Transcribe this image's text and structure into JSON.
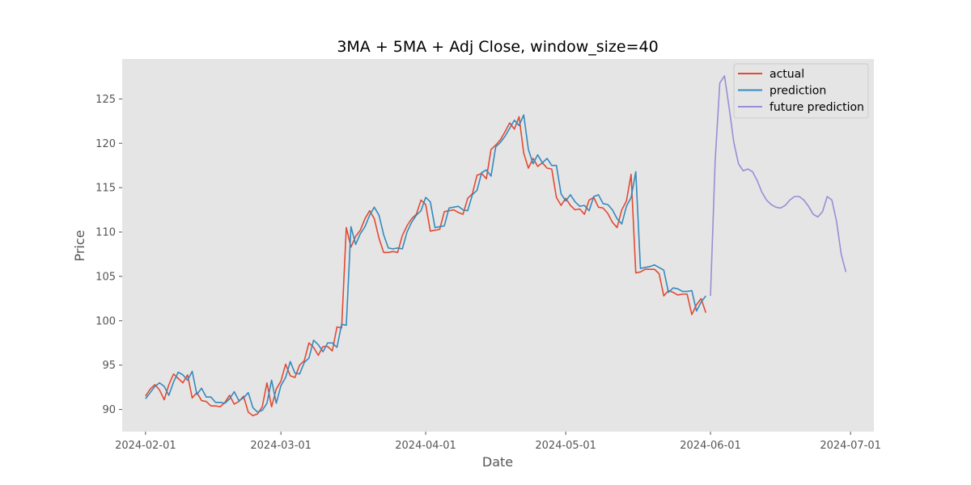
{
  "chart_data": {
    "type": "line",
    "title": "3MA + 5MA + Adj Close, window_size=40",
    "xlabel": "Date",
    "ylabel": "Price",
    "x_ticks": [
      "2024-02-01",
      "2024-03-01",
      "2024-04-01",
      "2024-05-01",
      "2024-06-01",
      "2024-07-01"
    ],
    "y_ticks": [
      90,
      95,
      100,
      105,
      110,
      115,
      120,
      125
    ],
    "xlim": [
      "2024-01-27",
      "2024-07-06"
    ],
    "ylim": [
      87.5,
      129.5
    ],
    "grid": false,
    "legend_position": "top-right",
    "colors": {
      "actual": "#e24a33",
      "prediction": "#348abd",
      "future prediction": "#988ed5",
      "plot_background": "#e5e5e5"
    },
    "series": [
      {
        "name": "actual",
        "points": [
          [
            "2024-02-01",
            91.5
          ],
          [
            "2024-02-02",
            92.3
          ],
          [
            "2024-02-03",
            92.8
          ],
          [
            "2024-02-04",
            92.2
          ],
          [
            "2024-02-05",
            91.1
          ],
          [
            "2024-02-06",
            92.8
          ],
          [
            "2024-02-07",
            94.0
          ],
          [
            "2024-02-08",
            93.5
          ],
          [
            "2024-02-09",
            93.0
          ],
          [
            "2024-02-10",
            93.9
          ],
          [
            "2024-02-11",
            91.3
          ],
          [
            "2024-02-12",
            91.9
          ],
          [
            "2024-02-13",
            91.0
          ],
          [
            "2024-02-14",
            90.9
          ],
          [
            "2024-02-15",
            90.4
          ],
          [
            "2024-02-16",
            90.4
          ],
          [
            "2024-02-17",
            90.3
          ],
          [
            "2024-02-18",
            90.8
          ],
          [
            "2024-02-19",
            91.6
          ],
          [
            "2024-02-20",
            90.6
          ],
          [
            "2024-02-21",
            90.9
          ],
          [
            "2024-02-22",
            91.5
          ],
          [
            "2024-02-23",
            89.7
          ],
          [
            "2024-02-24",
            89.3
          ],
          [
            "2024-02-25",
            89.5
          ],
          [
            "2024-02-26",
            90.3
          ],
          [
            "2024-02-27",
            93.0
          ],
          [
            "2024-02-28",
            90.3
          ],
          [
            "2024-02-29",
            92.3
          ],
          [
            "2024-03-01",
            93.2
          ],
          [
            "2024-03-02",
            95.1
          ],
          [
            "2024-03-03",
            93.8
          ],
          [
            "2024-03-04",
            93.6
          ],
          [
            "2024-03-05",
            95.0
          ],
          [
            "2024-03-06",
            95.5
          ],
          [
            "2024-03-07",
            97.5
          ],
          [
            "2024-03-08",
            97.0
          ],
          [
            "2024-03-09",
            96.1
          ],
          [
            "2024-03-10",
            97.1
          ],
          [
            "2024-03-11",
            97.1
          ],
          [
            "2024-03-12",
            96.6
          ],
          [
            "2024-03-13",
            99.3
          ],
          [
            "2024-03-14",
            99.2
          ],
          [
            "2024-03-15",
            110.5
          ],
          [
            "2024-03-16",
            108.3
          ],
          [
            "2024-03-17",
            109.5
          ],
          [
            "2024-03-18",
            110.2
          ],
          [
            "2024-03-19",
            111.5
          ],
          [
            "2024-03-20",
            112.4
          ],
          [
            "2024-03-21",
            111.5
          ],
          [
            "2024-03-22",
            109.3
          ],
          [
            "2024-03-23",
            107.7
          ],
          [
            "2024-03-24",
            107.7
          ],
          [
            "2024-03-25",
            107.8
          ],
          [
            "2024-03-26",
            107.7
          ],
          [
            "2024-03-27",
            109.6
          ],
          [
            "2024-03-28",
            110.7
          ],
          [
            "2024-03-29",
            111.5
          ],
          [
            "2024-03-30",
            112.0
          ],
          [
            "2024-03-31",
            113.6
          ],
          [
            "2024-04-01",
            113.1
          ],
          [
            "2024-04-02",
            110.1
          ],
          [
            "2024-04-03",
            110.2
          ],
          [
            "2024-04-04",
            110.3
          ],
          [
            "2024-04-05",
            112.3
          ],
          [
            "2024-04-06",
            112.4
          ],
          [
            "2024-04-07",
            112.5
          ],
          [
            "2024-04-08",
            112.2
          ],
          [
            "2024-04-09",
            112.0
          ],
          [
            "2024-04-10",
            113.8
          ],
          [
            "2024-04-11",
            114.3
          ],
          [
            "2024-04-12",
            116.4
          ],
          [
            "2024-04-13",
            116.6
          ],
          [
            "2024-04-14",
            116.0
          ],
          [
            "2024-04-15",
            119.3
          ],
          [
            "2024-04-16",
            119.8
          ],
          [
            "2024-04-17",
            120.4
          ],
          [
            "2024-04-18",
            121.3
          ],
          [
            "2024-04-19",
            122.3
          ],
          [
            "2024-04-20",
            121.6
          ],
          [
            "2024-04-21",
            123.0
          ],
          [
            "2024-04-22",
            118.9
          ],
          [
            "2024-04-23",
            117.2
          ],
          [
            "2024-04-24",
            118.3
          ],
          [
            "2024-04-25",
            117.4
          ],
          [
            "2024-04-26",
            117.8
          ],
          [
            "2024-04-27",
            117.2
          ],
          [
            "2024-04-28",
            117.1
          ],
          [
            "2024-04-29",
            113.9
          ],
          [
            "2024-04-30",
            113.0
          ],
          [
            "2024-05-01",
            113.8
          ],
          [
            "2024-05-02",
            113.0
          ],
          [
            "2024-05-03",
            112.5
          ],
          [
            "2024-05-04",
            112.6
          ],
          [
            "2024-05-05",
            112.0
          ],
          [
            "2024-05-06",
            113.6
          ],
          [
            "2024-05-07",
            113.9
          ],
          [
            "2024-05-08",
            112.8
          ],
          [
            "2024-05-09",
            112.7
          ],
          [
            "2024-05-10",
            112.1
          ],
          [
            "2024-05-11",
            111.1
          ],
          [
            "2024-05-12",
            110.5
          ],
          [
            "2024-05-13",
            112.5
          ],
          [
            "2024-05-14",
            113.5
          ],
          [
            "2024-05-15",
            116.5
          ],
          [
            "2024-05-16",
            105.4
          ],
          [
            "2024-05-17",
            105.5
          ],
          [
            "2024-05-18",
            105.8
          ],
          [
            "2024-05-19",
            105.8
          ],
          [
            "2024-05-20",
            105.8
          ],
          [
            "2024-05-21",
            105.3
          ],
          [
            "2024-05-22",
            102.8
          ],
          [
            "2024-05-23",
            103.4
          ],
          [
            "2024-05-24",
            103.2
          ],
          [
            "2024-05-25",
            102.9
          ],
          [
            "2024-05-26",
            103.0
          ],
          [
            "2024-05-27",
            103.0
          ],
          [
            "2024-05-28",
            100.7
          ],
          [
            "2024-05-29",
            101.8
          ],
          [
            "2024-05-30",
            102.5
          ],
          [
            "2024-05-31",
            100.9
          ]
        ]
      },
      {
        "name": "prediction",
        "points": [
          [
            "2024-02-01",
            91.2
          ],
          [
            "2024-02-02",
            91.9
          ],
          [
            "2024-02-03",
            92.6
          ],
          [
            "2024-02-04",
            93.0
          ],
          [
            "2024-02-05",
            92.6
          ],
          [
            "2024-02-06",
            91.6
          ],
          [
            "2024-02-07",
            93.1
          ],
          [
            "2024-02-08",
            94.2
          ],
          [
            "2024-02-09",
            93.9
          ],
          [
            "2024-02-10",
            93.3
          ],
          [
            "2024-02-11",
            94.3
          ],
          [
            "2024-02-12",
            91.7
          ],
          [
            "2024-02-13",
            92.4
          ],
          [
            "2024-02-14",
            91.4
          ],
          [
            "2024-02-15",
            91.4
          ],
          [
            "2024-02-16",
            90.8
          ],
          [
            "2024-02-17",
            90.8
          ],
          [
            "2024-02-18",
            90.7
          ],
          [
            "2024-02-19",
            91.2
          ],
          [
            "2024-02-20",
            92.0
          ],
          [
            "2024-02-21",
            91.0
          ],
          [
            "2024-02-22",
            91.3
          ],
          [
            "2024-02-23",
            91.9
          ],
          [
            "2024-02-24",
            90.2
          ],
          [
            "2024-02-25",
            89.7
          ],
          [
            "2024-02-26",
            89.9
          ],
          [
            "2024-02-27",
            90.7
          ],
          [
            "2024-02-28",
            93.3
          ],
          [
            "2024-02-29",
            90.7
          ],
          [
            "2024-03-01",
            92.7
          ],
          [
            "2024-03-02",
            93.6
          ],
          [
            "2024-03-03",
            95.4
          ],
          [
            "2024-03-04",
            94.1
          ],
          [
            "2024-03-05",
            94.0
          ],
          [
            "2024-03-06",
            95.3
          ],
          [
            "2024-03-07",
            95.8
          ],
          [
            "2024-03-08",
            97.8
          ],
          [
            "2024-03-09",
            97.3
          ],
          [
            "2024-03-10",
            96.5
          ],
          [
            "2024-03-11",
            97.5
          ],
          [
            "2024-03-12",
            97.5
          ],
          [
            "2024-03-13",
            97.0
          ],
          [
            "2024-03-14",
            99.6
          ],
          [
            "2024-03-15",
            99.5
          ],
          [
            "2024-03-16",
            110.6
          ],
          [
            "2024-03-17",
            108.6
          ],
          [
            "2024-03-18",
            109.8
          ],
          [
            "2024-03-19",
            110.6
          ],
          [
            "2024-03-20",
            111.9
          ],
          [
            "2024-03-21",
            112.8
          ],
          [
            "2024-03-22",
            111.9
          ],
          [
            "2024-03-23",
            109.7
          ],
          [
            "2024-03-24",
            108.2
          ],
          [
            "2024-03-25",
            108.1
          ],
          [
            "2024-03-26",
            108.2
          ],
          [
            "2024-03-27",
            108.1
          ],
          [
            "2024-03-28",
            110.0
          ],
          [
            "2024-03-29",
            111.1
          ],
          [
            "2024-03-30",
            111.9
          ],
          [
            "2024-03-31",
            112.4
          ],
          [
            "2024-04-01",
            113.9
          ],
          [
            "2024-04-02",
            113.4
          ],
          [
            "2024-04-03",
            110.5
          ],
          [
            "2024-04-04",
            110.6
          ],
          [
            "2024-04-05",
            110.7
          ],
          [
            "2024-04-06",
            112.7
          ],
          [
            "2024-04-07",
            112.8
          ],
          [
            "2024-04-08",
            112.9
          ],
          [
            "2024-04-09",
            112.5
          ],
          [
            "2024-04-10",
            112.4
          ],
          [
            "2024-04-11",
            114.2
          ],
          [
            "2024-04-12",
            114.7
          ],
          [
            "2024-04-13",
            116.7
          ],
          [
            "2024-04-14",
            117.0
          ],
          [
            "2024-04-15",
            116.3
          ],
          [
            "2024-04-16",
            119.6
          ],
          [
            "2024-04-17",
            120.1
          ],
          [
            "2024-04-18",
            120.8
          ],
          [
            "2024-04-19",
            121.7
          ],
          [
            "2024-04-20",
            122.6
          ],
          [
            "2024-04-21",
            122.0
          ],
          [
            "2024-04-22",
            123.2
          ],
          [
            "2024-04-23",
            119.3
          ],
          [
            "2024-04-24",
            117.7
          ],
          [
            "2024-04-25",
            118.7
          ],
          [
            "2024-04-26",
            117.8
          ],
          [
            "2024-04-27",
            118.3
          ],
          [
            "2024-04-28",
            117.5
          ],
          [
            "2024-04-29",
            117.5
          ],
          [
            "2024-04-30",
            114.3
          ],
          [
            "2024-05-01",
            113.5
          ],
          [
            "2024-05-02",
            114.2
          ],
          [
            "2024-05-03",
            113.4
          ],
          [
            "2024-05-04",
            112.9
          ],
          [
            "2024-05-05",
            113.0
          ],
          [
            "2024-05-06",
            112.4
          ],
          [
            "2024-05-07",
            114.0
          ],
          [
            "2024-05-08",
            114.2
          ],
          [
            "2024-05-09",
            113.2
          ],
          [
            "2024-05-10",
            113.1
          ],
          [
            "2024-05-11",
            112.5
          ],
          [
            "2024-05-12",
            111.5
          ],
          [
            "2024-05-13",
            110.9
          ],
          [
            "2024-05-14",
            112.9
          ],
          [
            "2024-05-15",
            113.9
          ],
          [
            "2024-05-16",
            116.8
          ],
          [
            "2024-05-17",
            105.9
          ],
          [
            "2024-05-18",
            106.0
          ],
          [
            "2024-05-19",
            106.1
          ],
          [
            "2024-05-20",
            106.3
          ],
          [
            "2024-05-21",
            106.0
          ],
          [
            "2024-05-22",
            105.7
          ],
          [
            "2024-05-23",
            103.2
          ],
          [
            "2024-05-24",
            103.7
          ],
          [
            "2024-05-25",
            103.6
          ],
          [
            "2024-05-26",
            103.3
          ],
          [
            "2024-05-27",
            103.3
          ],
          [
            "2024-05-28",
            103.4
          ],
          [
            "2024-05-29",
            101.1
          ],
          [
            "2024-05-30",
            102.1
          ],
          [
            "2024-05-31",
            102.8
          ]
        ]
      },
      {
        "name": "future prediction",
        "points": [
          [
            "2024-06-01",
            102.8
          ],
          [
            "2024-06-02",
            118.0
          ],
          [
            "2024-06-03",
            126.8
          ],
          [
            "2024-06-04",
            127.6
          ],
          [
            "2024-06-05",
            124.0
          ],
          [
            "2024-06-06",
            120.1
          ],
          [
            "2024-06-07",
            117.7
          ],
          [
            "2024-06-08",
            116.9
          ],
          [
            "2024-06-09",
            117.1
          ],
          [
            "2024-06-10",
            116.8
          ],
          [
            "2024-06-11",
            115.8
          ],
          [
            "2024-06-12",
            114.5
          ],
          [
            "2024-06-13",
            113.6
          ],
          [
            "2024-06-14",
            113.1
          ],
          [
            "2024-06-15",
            112.8
          ],
          [
            "2024-06-16",
            112.7
          ],
          [
            "2024-06-17",
            113.0
          ],
          [
            "2024-06-18",
            113.6
          ],
          [
            "2024-06-19",
            114.0
          ],
          [
            "2024-06-20",
            114.0
          ],
          [
            "2024-06-21",
            113.6
          ],
          [
            "2024-06-22",
            112.9
          ],
          [
            "2024-06-23",
            112.0
          ],
          [
            "2024-06-24",
            111.7
          ],
          [
            "2024-06-25",
            112.3
          ],
          [
            "2024-06-26",
            114.0
          ],
          [
            "2024-06-27",
            113.6
          ],
          [
            "2024-06-28",
            111.2
          ],
          [
            "2024-06-29",
            107.5
          ],
          [
            "2024-06-30",
            105.5
          ]
        ]
      }
    ]
  }
}
